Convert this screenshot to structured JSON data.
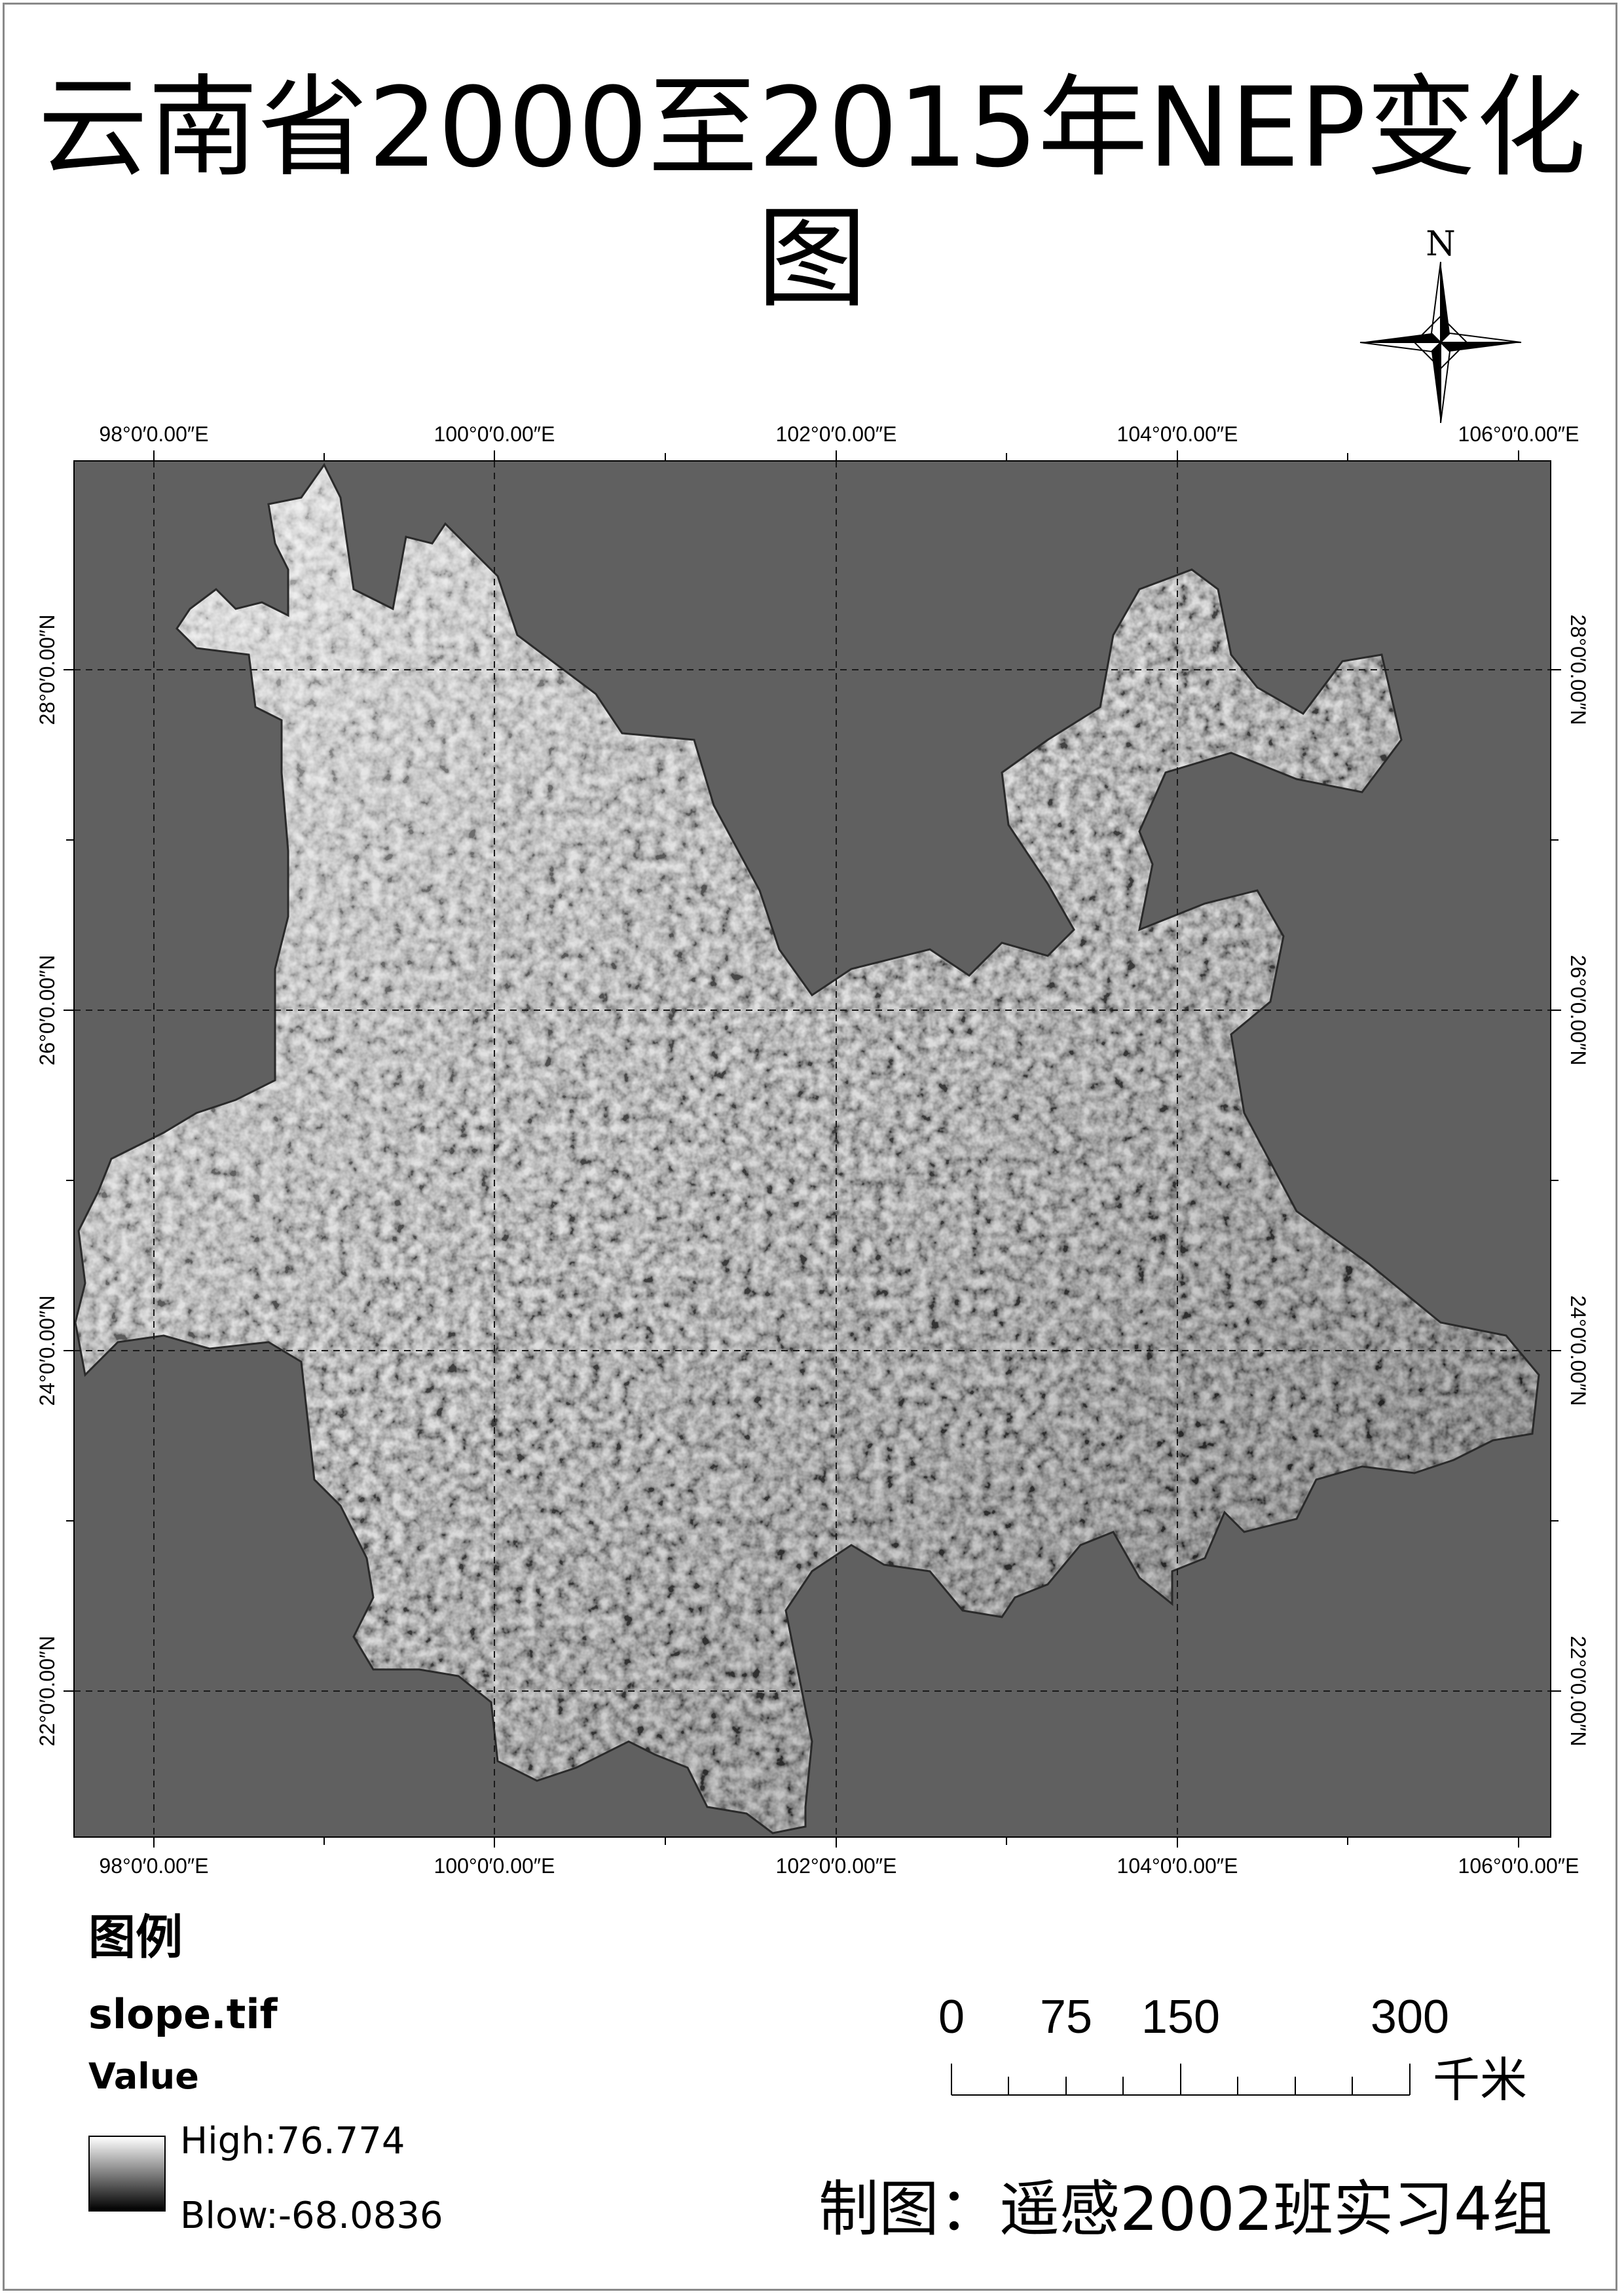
{
  "title": "云南省2000至2015年NEP变化图",
  "north_arrow": {
    "label": "N"
  },
  "map": {
    "background_color": "#606060",
    "grid_line_color": "#1a1a1a",
    "longitude_labels": [
      "98°0′0.00″E",
      "100°0′0.00″E",
      "102°0′0.00″E",
      "104°0′0.00″E",
      "106°0′0.00″E"
    ],
    "latitude_labels": [
      "28°0′0.00″N",
      "26°0′0.00″N",
      "24°0′0.00″N",
      "22°0′0.00″N"
    ]
  },
  "legend": {
    "title": "图例",
    "layer_name": "slope.tif",
    "field": "Value",
    "high_label": "High:76.774",
    "low_label": "Blow:-68.0836"
  },
  "scale_bar": {
    "labels": [
      "0",
      "75",
      "150",
      "300"
    ],
    "unit": "千米"
  },
  "credit": "制图：遥感2002班实习4组"
}
